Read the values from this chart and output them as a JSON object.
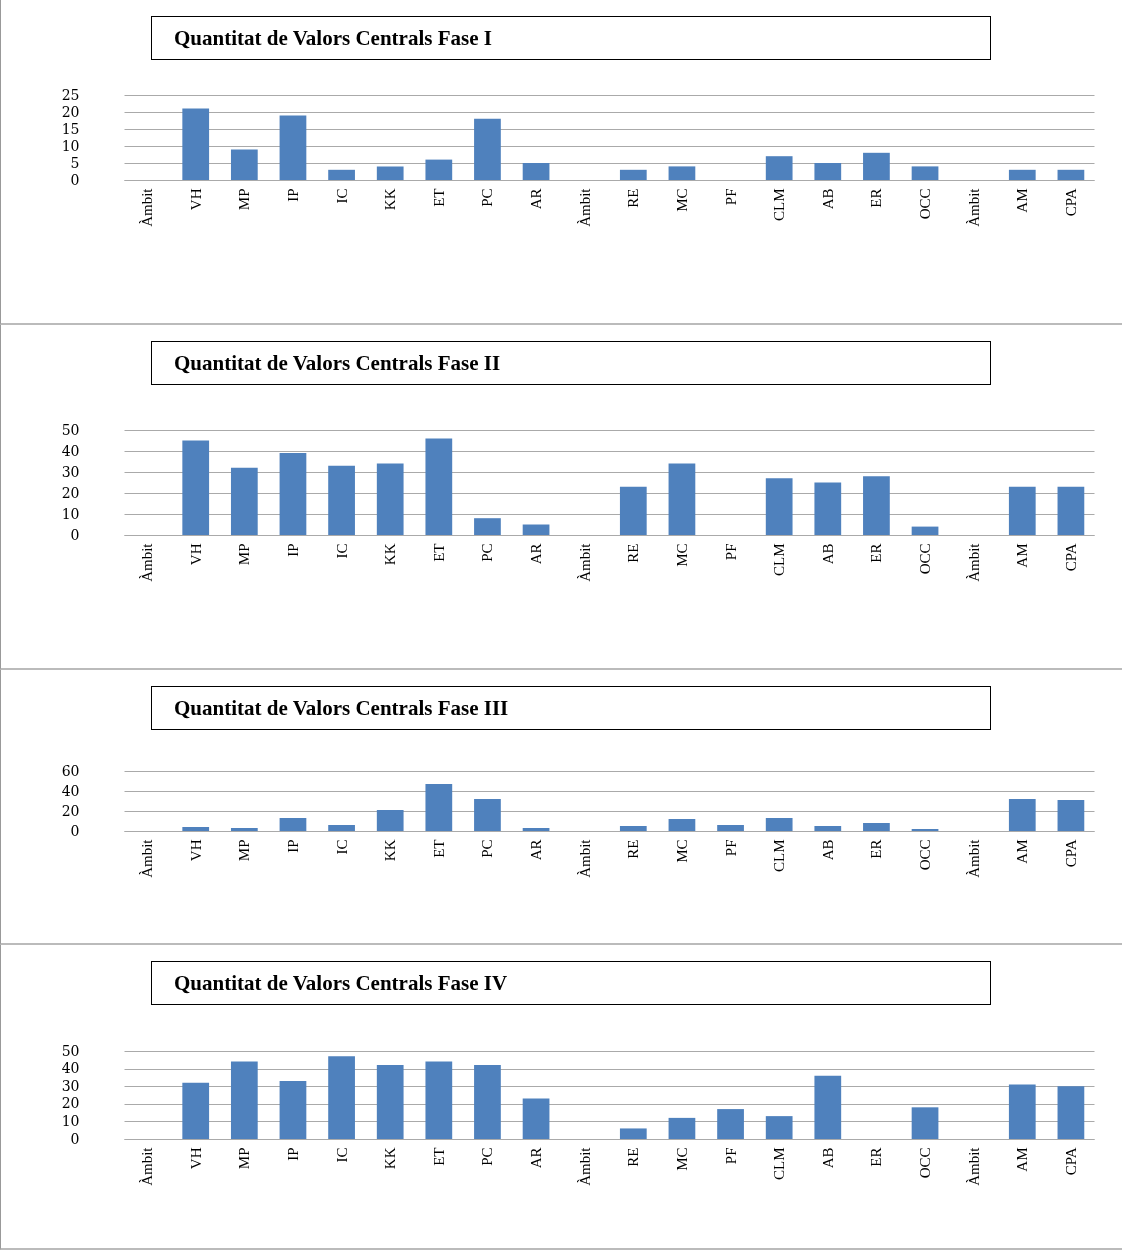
{
  "chart_data": [
    {
      "type": "bar",
      "title": "Quantitat de Valors Centrals Fase I",
      "categories": [
        "Àmbit",
        "VH",
        "MP",
        "IP",
        "IC",
        "KK",
        "ET",
        "PC",
        "AR",
        "Àmbit",
        "RE",
        "MC",
        "PF",
        "CLM",
        "AB",
        "ER",
        "OCC",
        "Àmbit",
        "AM",
        "CPA"
      ],
      "values": [
        null,
        21,
        9,
        19,
        3,
        4,
        6,
        18,
        5,
        null,
        3,
        4,
        null,
        7,
        5,
        8,
        4,
        null,
        3,
        3
      ],
      "color": "#4f81bd",
      "ylim": [
        0,
        25
      ],
      "yticks": [
        0,
        5,
        10,
        15,
        20,
        25
      ],
      "grid": "y"
    },
    {
      "type": "bar",
      "title": "Quantitat de Valors Centrals Fase II",
      "categories": [
        "Àmbit",
        "VH",
        "MP",
        "IP",
        "IC",
        "KK",
        "ET",
        "PC",
        "AR",
        "Àmbit",
        "RE",
        "MC",
        "PF",
        "CLM",
        "AB",
        "ER",
        "OCC",
        "Àmbit",
        "AM",
        "CPA"
      ],
      "values": [
        null,
        45,
        32,
        39,
        33,
        34,
        46,
        8,
        5,
        null,
        23,
        34,
        null,
        27,
        25,
        28,
        4,
        null,
        23,
        23
      ],
      "color": "#4f81bd",
      "ylim": [
        0,
        50
      ],
      "yticks": [
        0,
        10,
        20,
        30,
        40,
        50
      ],
      "grid": "y"
    },
    {
      "type": "bar",
      "title": "Quantitat de Valors Centrals Fase III",
      "categories": [
        "Àmbit",
        "VH",
        "MP",
        "IP",
        "IC",
        "KK",
        "ET",
        "PC",
        "AR",
        "Àmbit",
        "RE",
        "MC",
        "PF",
        "CLM",
        "AB",
        "ER",
        "OCC",
        "Àmbit",
        "AM",
        "CPA"
      ],
      "values": [
        null,
        4,
        3,
        13,
        6,
        21,
        47,
        32,
        3,
        null,
        5,
        12,
        6,
        13,
        5,
        8,
        2,
        null,
        32,
        31
      ],
      "color": "#4f81bd",
      "ylim": [
        0,
        60
      ],
      "yticks": [
        0,
        20,
        40,
        60
      ],
      "grid": "y"
    },
    {
      "type": "bar",
      "title": "Quantitat de Valors Centrals Fase IV",
      "categories": [
        "Àmbit",
        "VH",
        "MP",
        "IP",
        "IC",
        "KK",
        "ET",
        "PC",
        "AR",
        "Àmbit",
        "RE",
        "MC",
        "PF",
        "CLM",
        "AB",
        "ER",
        "OCC",
        "Àmbit",
        "AM",
        "CPA"
      ],
      "values": [
        null,
        32,
        44,
        33,
        47,
        42,
        44,
        42,
        23,
        null,
        6,
        12,
        17,
        13,
        36,
        null,
        18,
        null,
        31,
        30
      ],
      "color": "#4f81bd",
      "ylim": [
        0,
        50
      ],
      "yticks": [
        0,
        10,
        20,
        30,
        40,
        50
      ],
      "grid": "y"
    }
  ]
}
